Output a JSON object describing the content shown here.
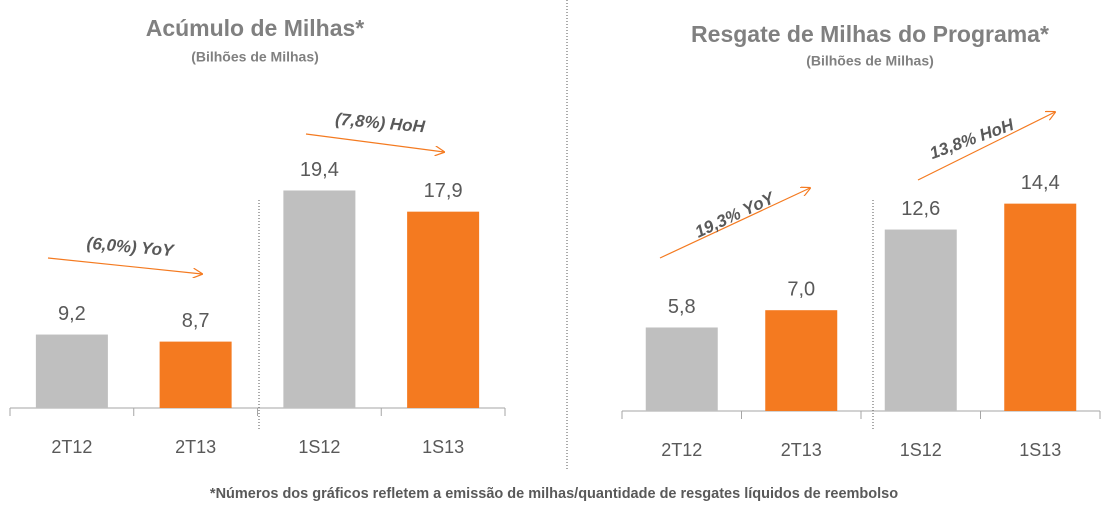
{
  "chart_data": [
    {
      "type": "bar",
      "title": "Acúmulo de Milhas*",
      "subtitle": "(Bilhões de Milhas)",
      "categories": [
        "2T12",
        "2T13",
        "1S12",
        "1S13"
      ],
      "values": [
        9.2,
        8.7,
        19.4,
        17.9
      ],
      "value_labels": [
        "9,2",
        "8,7",
        "19,4",
        "17,9"
      ],
      "colors": [
        "#bfbfbf",
        "#f47a20",
        "#bfbfbf",
        "#f47a20"
      ],
      "ylim": [
        4,
        20
      ],
      "annotations": [
        "(6,0%) YoY",
        "(7,8%) HoH"
      ]
    },
    {
      "type": "bar",
      "title": "Resgate de Milhas do Programa*",
      "subtitle": "(Bilhões de Milhas)",
      "categories": [
        "2T12",
        "2T13",
        "1S12",
        "1S13"
      ],
      "values": [
        5.8,
        7.0,
        12.6,
        14.4
      ],
      "value_labels": [
        "5,8",
        "7,0",
        "12,6",
        "14,4"
      ],
      "colors": [
        "#bfbfbf",
        "#f47a20",
        "#bfbfbf",
        "#f47a20"
      ],
      "ylim": [
        0,
        15
      ],
      "annotations": [
        "19,3% YoY",
        "13,8% HoH"
      ]
    }
  ],
  "footnote": "*Números dos gráficos refletem a emissão de milhas/quantidade de resgates líquidos de reembolso"
}
